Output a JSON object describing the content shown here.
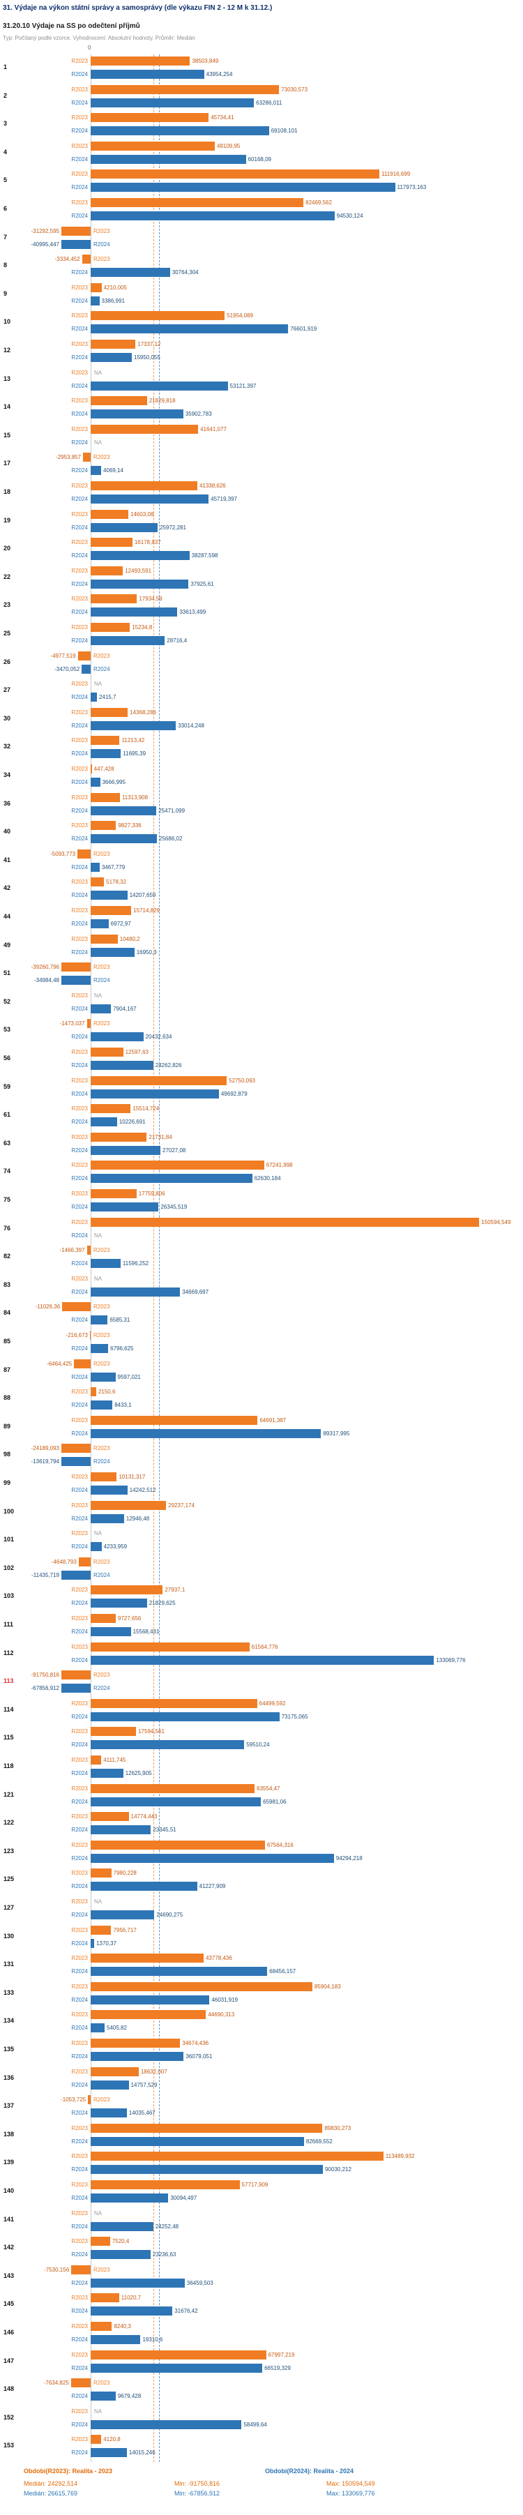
{
  "header": {
    "title": "31. Výdaje na výkon státní správy a samosprávy (dle výkazu FIN 2 - 12 M k 31.12.)",
    "subtitle": "31.20.10 Výdaje na SS po odečtení příjmů",
    "meta": "Typ: Počítaný podle vzorce. Vyhodnocení: Absolutní hodnoty. Průměr: Medián"
  },
  "footer": {
    "r2023": {
      "title": "Období(R2023): Realita - 2023",
      "median": "Medián: 24292,514",
      "min": "Min: -91750,816",
      "max": "Max: 150594,549"
    },
    "r2024": {
      "title": "Období(R2024): Realita - 2024",
      "median": "Medián: 26615,769",
      "min": "Min: -67856,912",
      "max": "Max: 133069,776"
    }
  },
  "chart_data": {
    "type": "bar",
    "orientation": "horizontal",
    "title": "31.20.10 Výdaje na SS po odečtení příjmů",
    "series_names": [
      "R2023",
      "R2024"
    ],
    "colors": {
      "R2023": "#f07d23",
      "R2024": "#2e75b6"
    },
    "label_colors": {
      "R2023": "#c55a11",
      "R2024": "#1f4e79"
    },
    "na_label": "NA",
    "zero_tick": "0",
    "legend_position": "bottom",
    "median_lines": {
      "R2023": "24292,514",
      "R2024": "26615,769"
    },
    "rows": [
      {
        "id": "1",
        "v2023": "38503,849",
        "v2024": "43954,254"
      },
      {
        "id": "2",
        "v2023": "73030,573",
        "v2024": "63286,011"
      },
      {
        "id": "3",
        "v2023": "45734,41",
        "v2024": "69108,101"
      },
      {
        "id": "4",
        "v2023": "48109,95",
        "v2024": "60168,09"
      },
      {
        "id": "5",
        "v2023": "111916,699",
        "v2024": "117973,163"
      },
      {
        "id": "6",
        "v2023": "82469,562",
        "v2024": "94530,124"
      },
      {
        "id": "7",
        "v2023": "-31292,595",
        "v2024": "-40995,447"
      },
      {
        "id": "8",
        "v2023": "-3334,452",
        "v2024": "30764,304"
      },
      {
        "id": "9",
        "v2023": "4210,005",
        "v2024": "3386,991"
      },
      {
        "id": "10",
        "v2023": "51954,089",
        "v2024": "76601,919"
      },
      {
        "id": "12",
        "v2023": "17337,12",
        "v2024": "15950,055"
      },
      {
        "id": "13",
        "v2023": null,
        "v2024": "53121,397"
      },
      {
        "id": "14",
        "v2023": "21829,818",
        "v2024": "35902,783"
      },
      {
        "id": "15",
        "v2023": "41641,077",
        "v2024": null
      },
      {
        "id": "17",
        "v2023": "-2953,857",
        "v2024": "4069,14"
      },
      {
        "id": "18",
        "v2023": "41338,626",
        "v2024": "45719,397"
      },
      {
        "id": "19",
        "v2023": "14603,08",
        "v2024": "25972,281"
      },
      {
        "id": "20",
        "v2023": "16178,837",
        "v2024": "38287,598"
      },
      {
        "id": "22",
        "v2023": "12493,591",
        "v2024": "37925,61"
      },
      {
        "id": "23",
        "v2023": "17934,59",
        "v2024": "33613,499"
      },
      {
        "id": "25",
        "v2023": "15234,8",
        "v2024": "28716,4"
      },
      {
        "id": "26",
        "v2023": "-4977,519",
        "v2024": "-3470,052"
      },
      {
        "id": "27",
        "v2023": null,
        "v2024": "2415,7"
      },
      {
        "id": "30",
        "v2023": "14368,286",
        "v2024": "33014,248"
      },
      {
        "id": "32",
        "v2023": "11213,42",
        "v2024": "11695,39"
      },
      {
        "id": "34",
        "v2023": "447,428",
        "v2024": "3666,995"
      },
      {
        "id": "36",
        "v2023": "11313,908",
        "v2024": "25471,099"
      },
      {
        "id": "40",
        "v2023": "9827,336",
        "v2024": "25686,02"
      },
      {
        "id": "41",
        "v2023": "-5093,773",
        "v2024": "3467,779"
      },
      {
        "id": "42",
        "v2023": "5178,32",
        "v2024": "14207,659"
      },
      {
        "id": "44",
        "v2023": "15714,829",
        "v2024": "6972,97"
      },
      {
        "id": "49",
        "v2023": "10480,2",
        "v2024": "16950,3"
      },
      {
        "id": "51",
        "v2023": "-39260,796",
        "v2024": "-34984,48"
      },
      {
        "id": "52",
        "v2023": null,
        "v2024": "7904,167"
      },
      {
        "id": "53",
        "v2023": "-1473,037",
        "v2024": "20432,634"
      },
      {
        "id": "56",
        "v2023": "12597,63",
        "v2024": "24262,826"
      },
      {
        "id": "59",
        "v2023": "52750,093",
        "v2024": "49692,879"
      },
      {
        "id": "61",
        "v2023": "15514,724",
        "v2024": "10226,691"
      },
      {
        "id": "63",
        "v2023": "21731,84",
        "v2024": "27027,08"
      },
      {
        "id": "74",
        "v2023": "67241,998",
        "v2024": "62630,184"
      },
      {
        "id": "75",
        "v2023": "17759,806",
        "v2024": "26345,519"
      },
      {
        "id": "76",
        "v2023": "150594,549",
        "v2024": null
      },
      {
        "id": "82",
        "v2023": "-1466,397",
        "v2024": "11596,252"
      },
      {
        "id": "83",
        "v2023": null,
        "v2024": "34669,697"
      },
      {
        "id": "84",
        "v2023": "-11026,36",
        "v2024": "6585,31"
      },
      {
        "id": "85",
        "v2023": "-216,673",
        "v2024": "6796,625"
      },
      {
        "id": "87",
        "v2023": "-6464,425",
        "v2024": "9597,021"
      },
      {
        "id": "88",
        "v2023": "2150,6",
        "v2024": "8433,1"
      },
      {
        "id": "89",
        "v2023": "64691,387",
        "v2024": "89317,995"
      },
      {
        "id": "98",
        "v2023": "-24189,093",
        "v2024": "-13619,794"
      },
      {
        "id": "99",
        "v2023": "10131,317",
        "v2024": "14242,512"
      },
      {
        "id": "100",
        "v2023": "29237,174",
        "v2024": "12946,48"
      },
      {
        "id": "101",
        "v2023": null,
        "v2024": "4233,959"
      },
      {
        "id": "102",
        "v2023": "-4648,793",
        "v2024": "-11435,719"
      },
      {
        "id": "103",
        "v2023": "27937,1",
        "v2024": "21829,625"
      },
      {
        "id": "111",
        "v2023": "9727,656",
        "v2024": "15568,431"
      },
      {
        "id": "112",
        "v2023": "61564,776",
        "v2024": "133069,776"
      },
      {
        "id": "113",
        "v2023": "-91750,816",
        "v2024": "-67856,912",
        "highlight": true
      },
      {
        "id": "114",
        "v2023": "64499,592",
        "v2024": "73175,065"
      },
      {
        "id": "115",
        "v2023": "17594,561",
        "v2024": "59510,24"
      },
      {
        "id": "118",
        "v2023": "4111,745",
        "v2024": "12625,905"
      },
      {
        "id": "121",
        "v2023": "63554,47",
        "v2024": "65981,06"
      },
      {
        "id": "122",
        "v2023": "14774,443",
        "v2024": "23345,51"
      },
      {
        "id": "123",
        "v2023": "67564,316",
        "v2024": "94294,218"
      },
      {
        "id": "125",
        "v2023": "7980,228",
        "v2024": "41227,909"
      },
      {
        "id": "127",
        "v2023": null,
        "v2024": "24690,275"
      },
      {
        "id": "130",
        "v2023": "7956,717",
        "v2024": "1370,37"
      },
      {
        "id": "131",
        "v2023": "43778,436",
        "v2024": "68456,157"
      },
      {
        "id": "133",
        "v2023": "85904,183",
        "v2024": "46031,919"
      },
      {
        "id": "134",
        "v2023": "44690,313",
        "v2024": "5405,82"
      },
      {
        "id": "135",
        "v2023": "34674,436",
        "v2024": "36079,051"
      },
      {
        "id": "136",
        "v2023": "18632,007",
        "v2024": "14757,529"
      },
      {
        "id": "137",
        "v2023": "-1053,725",
        "v2024": "14035,467"
      },
      {
        "id": "138",
        "v2023": "89830,273",
        "v2024": "82669,552"
      },
      {
        "id": "139",
        "v2023": "113489,932",
        "v2024": "90030,212"
      },
      {
        "id": "140",
        "v2023": "57717,909",
        "v2024": "30094,497"
      },
      {
        "id": "141",
        "v2023": null,
        "v2024": "24252,48"
      },
      {
        "id": "142",
        "v2023": "7520,4",
        "v2024": "23236,63"
      },
      {
        "id": "143",
        "v2023": "-7530,156",
        "v2024": "36459,503"
      },
      {
        "id": "145",
        "v2023": "11020,7",
        "v2024": "31676,42"
      },
      {
        "id": "146",
        "v2023": "8240,3",
        "v2024": "19310,6"
      },
      {
        "id": "147",
        "v2023": "67997,219",
        "v2024": "66519,329"
      },
      {
        "id": "148",
        "v2023": "-7634,825",
        "v2024": "9679,428"
      },
      {
        "id": "152",
        "v2023": null,
        "v2024": "58499,64"
      },
      {
        "id": "153",
        "v2023": "4120,8",
        "v2024": "14015,246"
      }
    ]
  }
}
